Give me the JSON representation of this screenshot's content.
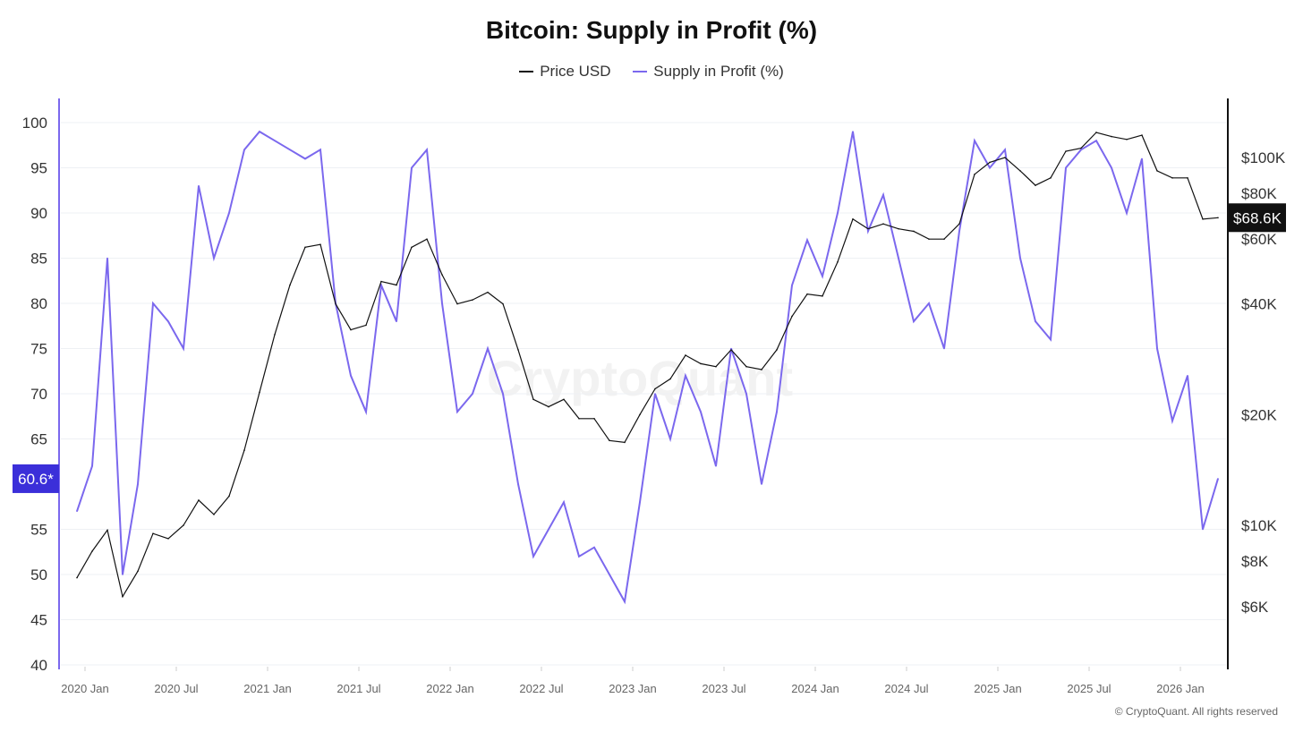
{
  "chart_data": {
    "type": "line",
    "title": "Bitcoin: Supply in Profit (%)",
    "legend": {
      "placement": "top-center"
    },
    "grid": true,
    "watermark": "CryptoQuant",
    "footer": "© CryptoQuant. All rights reserved",
    "x_ticks": [
      "2020 Jan",
      "2020 Jul",
      "2021 Jan",
      "2021 Jul",
      "2022 Jan",
      "2022 Jul",
      "2023 Jan",
      "2023 Jul",
      "2024 Jan",
      "2024 Jul",
      "2025 Jan",
      "2025 Jul",
      "2026 Jan"
    ],
    "y_left": {
      "ticks": [
        "100",
        "95",
        "90",
        "85",
        "80",
        "75",
        "70",
        "65",
        "55",
        "50",
        "45",
        "40"
      ],
      "range": [
        40,
        100
      ],
      "current_label": "60.6*",
      "current_value": 60.6
    },
    "y_right": {
      "scale": "log",
      "ticks": [
        {
          "label": "$100K",
          "value": 100000
        },
        {
          "label": "$80K",
          "value": 80000
        },
        {
          "label": "$60K",
          "value": 60000
        },
        {
          "label": "$40K",
          "value": 40000
        },
        {
          "label": "$20K",
          "value": 20000
        },
        {
          "label": "$10K",
          "value": 10000
        },
        {
          "label": "$8K",
          "value": 8000
        },
        {
          "label": "$6K",
          "value": 6000
        }
      ],
      "current_label": "$68.6K",
      "current_value": 68600
    },
    "x": [
      "2019-12",
      "2020-01",
      "2020-02",
      "2020-03",
      "2020-04",
      "2020-05",
      "2020-06",
      "2020-07",
      "2020-08",
      "2020-09",
      "2020-10",
      "2020-11",
      "2020-12",
      "2021-01",
      "2021-02",
      "2021-03",
      "2021-04",
      "2021-05",
      "2021-06",
      "2021-07",
      "2021-08",
      "2021-09",
      "2021-10",
      "2021-11",
      "2021-12",
      "2022-01",
      "2022-02",
      "2022-03",
      "2022-04",
      "2022-05",
      "2022-06",
      "2022-07",
      "2022-08",
      "2022-09",
      "2022-10",
      "2022-11",
      "2022-12",
      "2023-01",
      "2023-02",
      "2023-03",
      "2023-04",
      "2023-05",
      "2023-06",
      "2023-07",
      "2023-08",
      "2023-09",
      "2023-10",
      "2023-11",
      "2023-12",
      "2024-01",
      "2024-02",
      "2024-03",
      "2024-04",
      "2024-05",
      "2024-06",
      "2024-07",
      "2024-08",
      "2024-09",
      "2024-10",
      "2024-11",
      "2024-12",
      "2025-01",
      "2025-02",
      "2025-03",
      "2025-04",
      "2025-05",
      "2025-06",
      "2025-07",
      "2025-08",
      "2025-09",
      "2025-10",
      "2025-11",
      "2025-12",
      "2026-01",
      "2026-02",
      "2026-03"
    ],
    "series": [
      {
        "name": "Price USD",
        "axis": "right",
        "color": "#111111",
        "values": [
          7200,
          8500,
          9700,
          6400,
          7500,
          9500,
          9200,
          10000,
          11700,
          10700,
          12000,
          16000,
          23000,
          33000,
          45000,
          57000,
          58000,
          40000,
          34000,
          35000,
          46000,
          45000,
          57000,
          60000,
          48000,
          40000,
          41000,
          43000,
          40000,
          30000,
          22000,
          21000,
          22000,
          19500,
          19500,
          17000,
          16800,
          20000,
          23500,
          25000,
          29000,
          27500,
          27000,
          30000,
          27000,
          26500,
          30000,
          37000,
          42500,
          42000,
          52000,
          68000,
          64000,
          66000,
          64000,
          63000,
          60000,
          60000,
          66000,
          90000,
          97000,
          100000,
          92000,
          84000,
          88000,
          104000,
          106000,
          117000,
          114000,
          112000,
          115000,
          92000,
          88000,
          88000,
          68000,
          68600
        ]
      },
      {
        "name": "Supply in Profit (%)",
        "axis": "left",
        "color": "#7b68ee",
        "values": [
          57,
          62,
          85,
          50,
          60,
          80,
          78,
          75,
          93,
          85,
          90,
          97,
          99,
          98,
          97,
          96,
          97,
          80,
          72,
          68,
          82,
          78,
          95,
          97,
          80,
          68,
          70,
          75,
          70,
          60,
          52,
          55,
          58,
          52,
          53,
          50,
          47,
          58,
          70,
          65,
          72,
          68,
          62,
          75,
          70,
          60,
          68,
          82,
          87,
          83,
          90,
          99,
          88,
          92,
          85,
          78,
          80,
          75,
          88,
          98,
          95,
          97,
          85,
          78,
          76,
          95,
          97,
          98,
          95,
          90,
          96,
          75,
          67,
          72,
          55,
          60.6
        ]
      }
    ]
  }
}
